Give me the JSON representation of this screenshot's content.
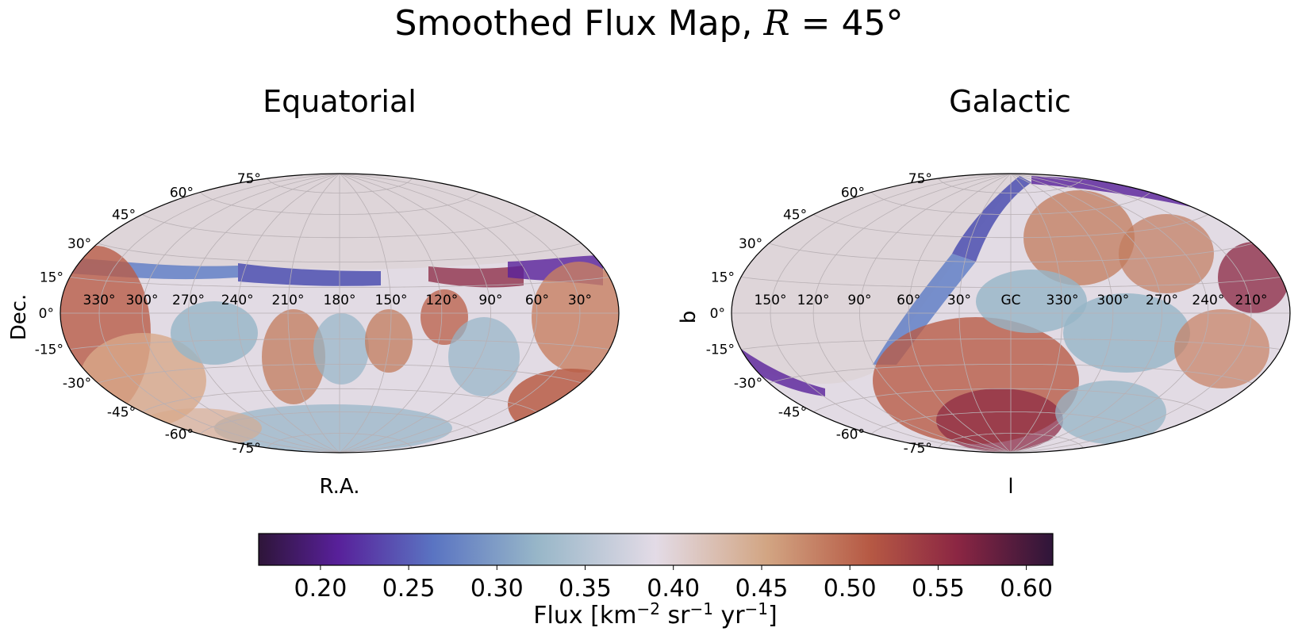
{
  "title": {
    "prefix": "Smoothed Flux Map, ",
    "var": "R",
    "suffix": " = 45°"
  },
  "chart_data": [
    {
      "type": "heatmap",
      "projection": "hammer",
      "title": "Equatorial",
      "xlabel": "R.A.",
      "ylabel": "Dec.",
      "lon_ticks": [
        "330°",
        "300°",
        "270°",
        "240°",
        "210°",
        "180°",
        "150°",
        "120°",
        "90°",
        "60°",
        "30°"
      ],
      "lat_ticks": [
        "75°",
        "60°",
        "45°",
        "30°",
        "15°",
        "0°",
        "-15°",
        "-30°",
        "-45°",
        "-60°",
        "-75°"
      ],
      "grid": true,
      "coverage": "Dec below about +20° (northern cap not covered)"
    },
    {
      "type": "heatmap",
      "projection": "hammer",
      "title": "Galactic",
      "xlabel": "l",
      "ylabel": "b",
      "lon_ticks": [
        "150°",
        "120°",
        "90°",
        "60°",
        "30°",
        "GC",
        "330°",
        "300°",
        "270°",
        "240°",
        "210°"
      ],
      "lat_ticks": [
        "75°",
        "60°",
        "45°",
        "30°",
        "15°",
        "0°",
        "-15°",
        "-30°",
        "-45°",
        "-60°",
        "-75°"
      ],
      "grid": true,
      "coverage": "uncovered region toward l = 60°–180°, b > -30°"
    }
  ],
  "colorbar": {
    "colormap": "twilight_shifted",
    "range": [
      0.165,
      0.615
    ],
    "ticks": [
      "0.20",
      "0.25",
      "0.30",
      "0.35",
      "0.40",
      "0.45",
      "0.50",
      "0.55",
      "0.60"
    ],
    "label_prefix": "Flux [km",
    "label_exp1": "−2",
    "label_mid1": " sr",
    "label_exp2": "−1",
    "label_mid2": " yr",
    "label_exp3": "−1",
    "label_suffix": "]"
  },
  "colors": {
    "no_data": "#ded5d9",
    "dark_purple": "#2e1539",
    "purple": "#59209a",
    "blue": "#5b7ac4",
    "light_blue": "#96b5c7",
    "center": "#e3dbe6",
    "tan": "#d8a98a",
    "red": "#b95d47",
    "dark_red": "#8a2642",
    "dark_end": "#2e1539"
  }
}
